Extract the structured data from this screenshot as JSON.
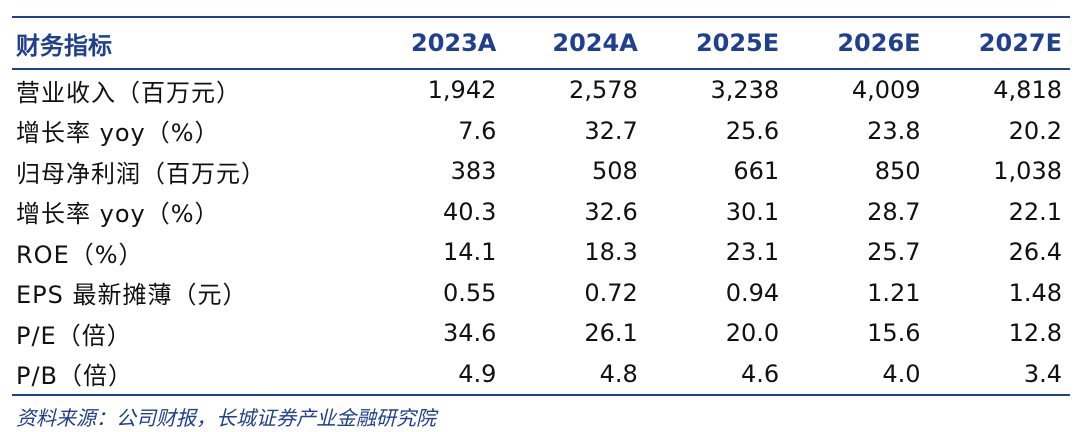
{
  "table": {
    "header": [
      "财务指标",
      "2023A",
      "2024A",
      "2025E",
      "2026E",
      "2027E"
    ],
    "rows": [
      [
        "营业收入（百万元）",
        "1,942",
        "2,578",
        "3,238",
        "4,009",
        "4,818"
      ],
      [
        "增长率 yoy（%）",
        "7.6",
        "32.7",
        "25.6",
        "23.8",
        "20.2"
      ],
      [
        "归母净利润（百万元）",
        "383",
        "508",
        "661",
        "850",
        "1,038"
      ],
      [
        "增长率 yoy（%）",
        "40.3",
        "32.6",
        "30.1",
        "28.7",
        "22.1"
      ],
      [
        "ROE（%）",
        "14.1",
        "18.3",
        "23.1",
        "25.7",
        "26.4"
      ],
      [
        "EPS 最新摊薄（元）",
        "0.55",
        "0.72",
        "0.94",
        "1.21",
        "1.48"
      ],
      [
        "P/E（倍）",
        "34.6",
        "26.1",
        "20.0",
        "15.6",
        "12.8"
      ],
      [
        "P/B（倍）",
        "4.9",
        "4.8",
        "4.6",
        "4.0",
        "3.4"
      ]
    ]
  },
  "source": "资料来源：公司财报，长城证券产业金融研究院",
  "colors": {
    "accent": "#1f3f8f",
    "text": "#111111"
  }
}
